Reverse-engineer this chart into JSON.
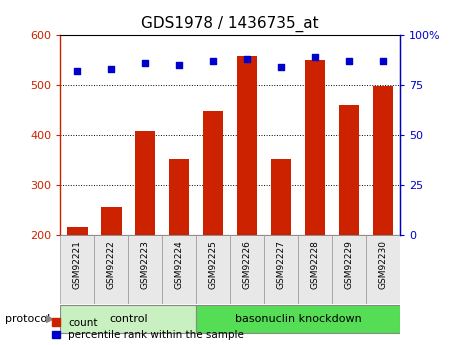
{
  "title": "GDS1978 / 1436735_at",
  "samples": [
    "GSM92221",
    "GSM92222",
    "GSM92223",
    "GSM92224",
    "GSM92225",
    "GSM92226",
    "GSM92227",
    "GSM92228",
    "GSM92229",
    "GSM92230"
  ],
  "count_values": [
    215,
    255,
    408,
    352,
    448,
    558,
    352,
    550,
    460,
    498
  ],
  "percentile_values": [
    82,
    83,
    86,
    85,
    87,
    88,
    84,
    89,
    87,
    87
  ],
  "ylim_left": [
    200,
    600
  ],
  "ylim_right": [
    0,
    100
  ],
  "yticks_left": [
    200,
    300,
    400,
    500,
    600
  ],
  "yticks_right": [
    0,
    25,
    50,
    75,
    100
  ],
  "bar_color": "#cc2200",
  "dot_color": "#0000cc",
  "control_indices": [
    0,
    1,
    2,
    3
  ],
  "knockdown_indices": [
    4,
    5,
    6,
    7,
    8,
    9
  ],
  "control_label": "control",
  "knockdown_label": "basonuclin knockdown",
  "control_color": "#c8f0c0",
  "knockdown_color": "#55dd55",
  "protocol_label": "protocol",
  "legend_count": "count",
  "legend_percentile": "percentile rank within the sample",
  "background_color": "#ffffff",
  "plot_bg_color": "#ffffff",
  "cell_bg_color": "#e8e8e8",
  "title_fontsize": 11,
  "tick_fontsize": 8,
  "label_fontsize": 8
}
